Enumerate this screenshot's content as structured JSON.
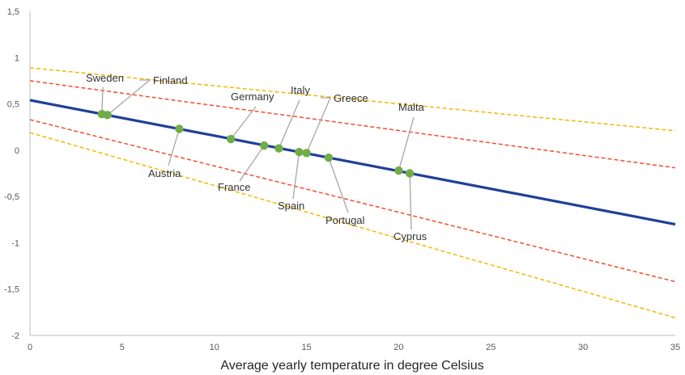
{
  "chart_data": {
    "type": "line",
    "title": "",
    "xlabel": "Average yearly temperature in degree Celsius",
    "ylabel": "",
    "xlim": [
      0,
      35
    ],
    "ylim": [
      -2,
      1.5
    ],
    "x_ticks": [
      0,
      5,
      10,
      15,
      20,
      25,
      30,
      35
    ],
    "y_ticks": [
      -2,
      -1.5,
      -1,
      -0.5,
      0,
      0.5,
      1,
      1.5
    ],
    "y_tick_labels": [
      "-2",
      "-1,5",
      "-1",
      "-0,5",
      "0",
      "0,5",
      "1",
      "1,5"
    ],
    "grid": false,
    "lines": [
      {
        "style": "solid",
        "color": "#1f3f99",
        "points": [
          [
            0,
            0.54
          ],
          [
            35,
            -0.8
          ]
        ]
      },
      {
        "style": "dashed",
        "color": "#f0502a",
        "points": [
          [
            0,
            0.75
          ],
          [
            35,
            -0.19
          ]
        ]
      },
      {
        "style": "dashed",
        "color": "#f0502a",
        "points": [
          [
            0,
            0.33
          ],
          [
            35,
            -1.42
          ]
        ]
      },
      {
        "style": "dashed",
        "color": "#f5b800",
        "points": [
          [
            0,
            0.89
          ],
          [
            35,
            0.21
          ]
        ]
      },
      {
        "style": "dashed",
        "color": "#f5b800",
        "points": [
          [
            0,
            0.19
          ],
          [
            35,
            -1.81
          ]
        ]
      }
    ],
    "points_color": "#70ad47",
    "points": [
      {
        "name": "Sweden",
        "x": 3.9,
        "y": 0.39
      },
      {
        "name": "Finland",
        "x": 4.2,
        "y": 0.38
      },
      {
        "name": "Austria",
        "x": 8.1,
        "y": 0.23
      },
      {
        "name": "Germany",
        "x": 10.9,
        "y": 0.12
      },
      {
        "name": "France",
        "x": 12.7,
        "y": 0.05
      },
      {
        "name": "Italy",
        "x": 13.5,
        "y": 0.02
      },
      {
        "name": "Spain",
        "x": 14.6,
        "y": -0.02
      },
      {
        "name": "Greece",
        "x": 15.0,
        "y": -0.03
      },
      {
        "name": "Portugal",
        "x": 16.2,
        "y": -0.08
      },
      {
        "name": "Malta",
        "x": 20.0,
        "y": -0.22
      },
      {
        "name": "Cyprus",
        "x": 20.6,
        "y": -0.25
      }
    ]
  }
}
